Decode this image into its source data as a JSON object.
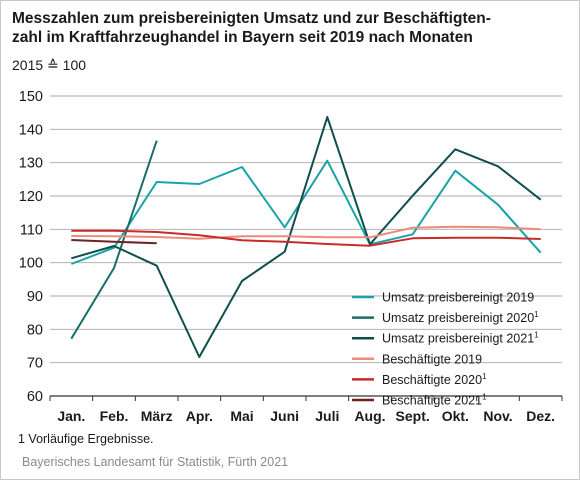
{
  "title_line1": "Messzahlen zum preisbereinigten Umsatz und zur Beschäftigten-",
  "title_line2": "zahl im Kraftfahrzeughandel in Bayern seit 2019 nach Monaten",
  "subtitle": "2015 ≙ 100",
  "footnote": "1  Vorläufige Ergebnisse.",
  "source": "Bayerisches Landesamt für Statistik, Fürth 2021",
  "chart_data": {
    "type": "line",
    "title": "Messzahlen zum preisbereinigten Umsatz und zur Beschäftigtenzahl im Kraftfahrzeughandel in Bayern seit 2019 nach Monaten",
    "subtitle": "2015 ≙ 100",
    "categories": [
      "Jan.",
      "Feb.",
      "März",
      "Apr.",
      "Mai",
      "Juni",
      "Juli",
      "Aug.",
      "Sept.",
      "Okt.",
      "Nov.",
      "Dez."
    ],
    "ylim": [
      60,
      150
    ],
    "yticks": [
      60,
      70,
      80,
      90,
      100,
      110,
      120,
      130,
      140,
      150
    ],
    "grid": true,
    "legend_position": "bottom-right",
    "series": [
      {
        "name": "Umsatz preisbereinigt 2019",
        "sup": "",
        "color": "#1aa3a6",
        "values": [
          99.6,
          104.5,
          124.2,
          123.6,
          128.7,
          110.6,
          130.6,
          105.5,
          108.5,
          127.6,
          117.4,
          103.0
        ]
      },
      {
        "name": "Umsatz preisbereinigt 2020",
        "sup": "1",
        "color": "#1a6e6a",
        "values": [
          77.2,
          98.4,
          136.6,
          null,
          null,
          null,
          null,
          null,
          null,
          null,
          null,
          null
        ]
      },
      {
        "name": "Umsatz preisbereinigt 2021",
        "sup": "1",
        "color": "#0f4f4c",
        "values": [
          101.3,
          105.0,
          99.1,
          71.7,
          94.5,
          103.3,
          143.7,
          105.5,
          120.1,
          134.0,
          128.9,
          118.9
        ]
      },
      {
        "name": "Beschäftigte 2019",
        "sup": "",
        "color": "#ee8a7c",
        "values": [
          108.0,
          107.9,
          107.7,
          107.2,
          107.9,
          107.9,
          107.6,
          107.6,
          110.5,
          110.8,
          110.6,
          110.0
        ]
      },
      {
        "name": "Beschäftigte 2020",
        "sup": "1",
        "color": "#c92a2a",
        "values": [
          109.6,
          109.6,
          109.2,
          108.2,
          106.7,
          106.3,
          105.6,
          105.1,
          107.3,
          107.5,
          107.5,
          107.1
        ]
      },
      {
        "name": "Beschäftigte 2021",
        "sup": "1",
        "color": "#6b2323",
        "values": [
          106.8,
          106.3,
          105.8,
          null,
          null,
          null,
          null,
          null,
          null,
          null,
          null,
          null
        ]
      }
    ]
  }
}
